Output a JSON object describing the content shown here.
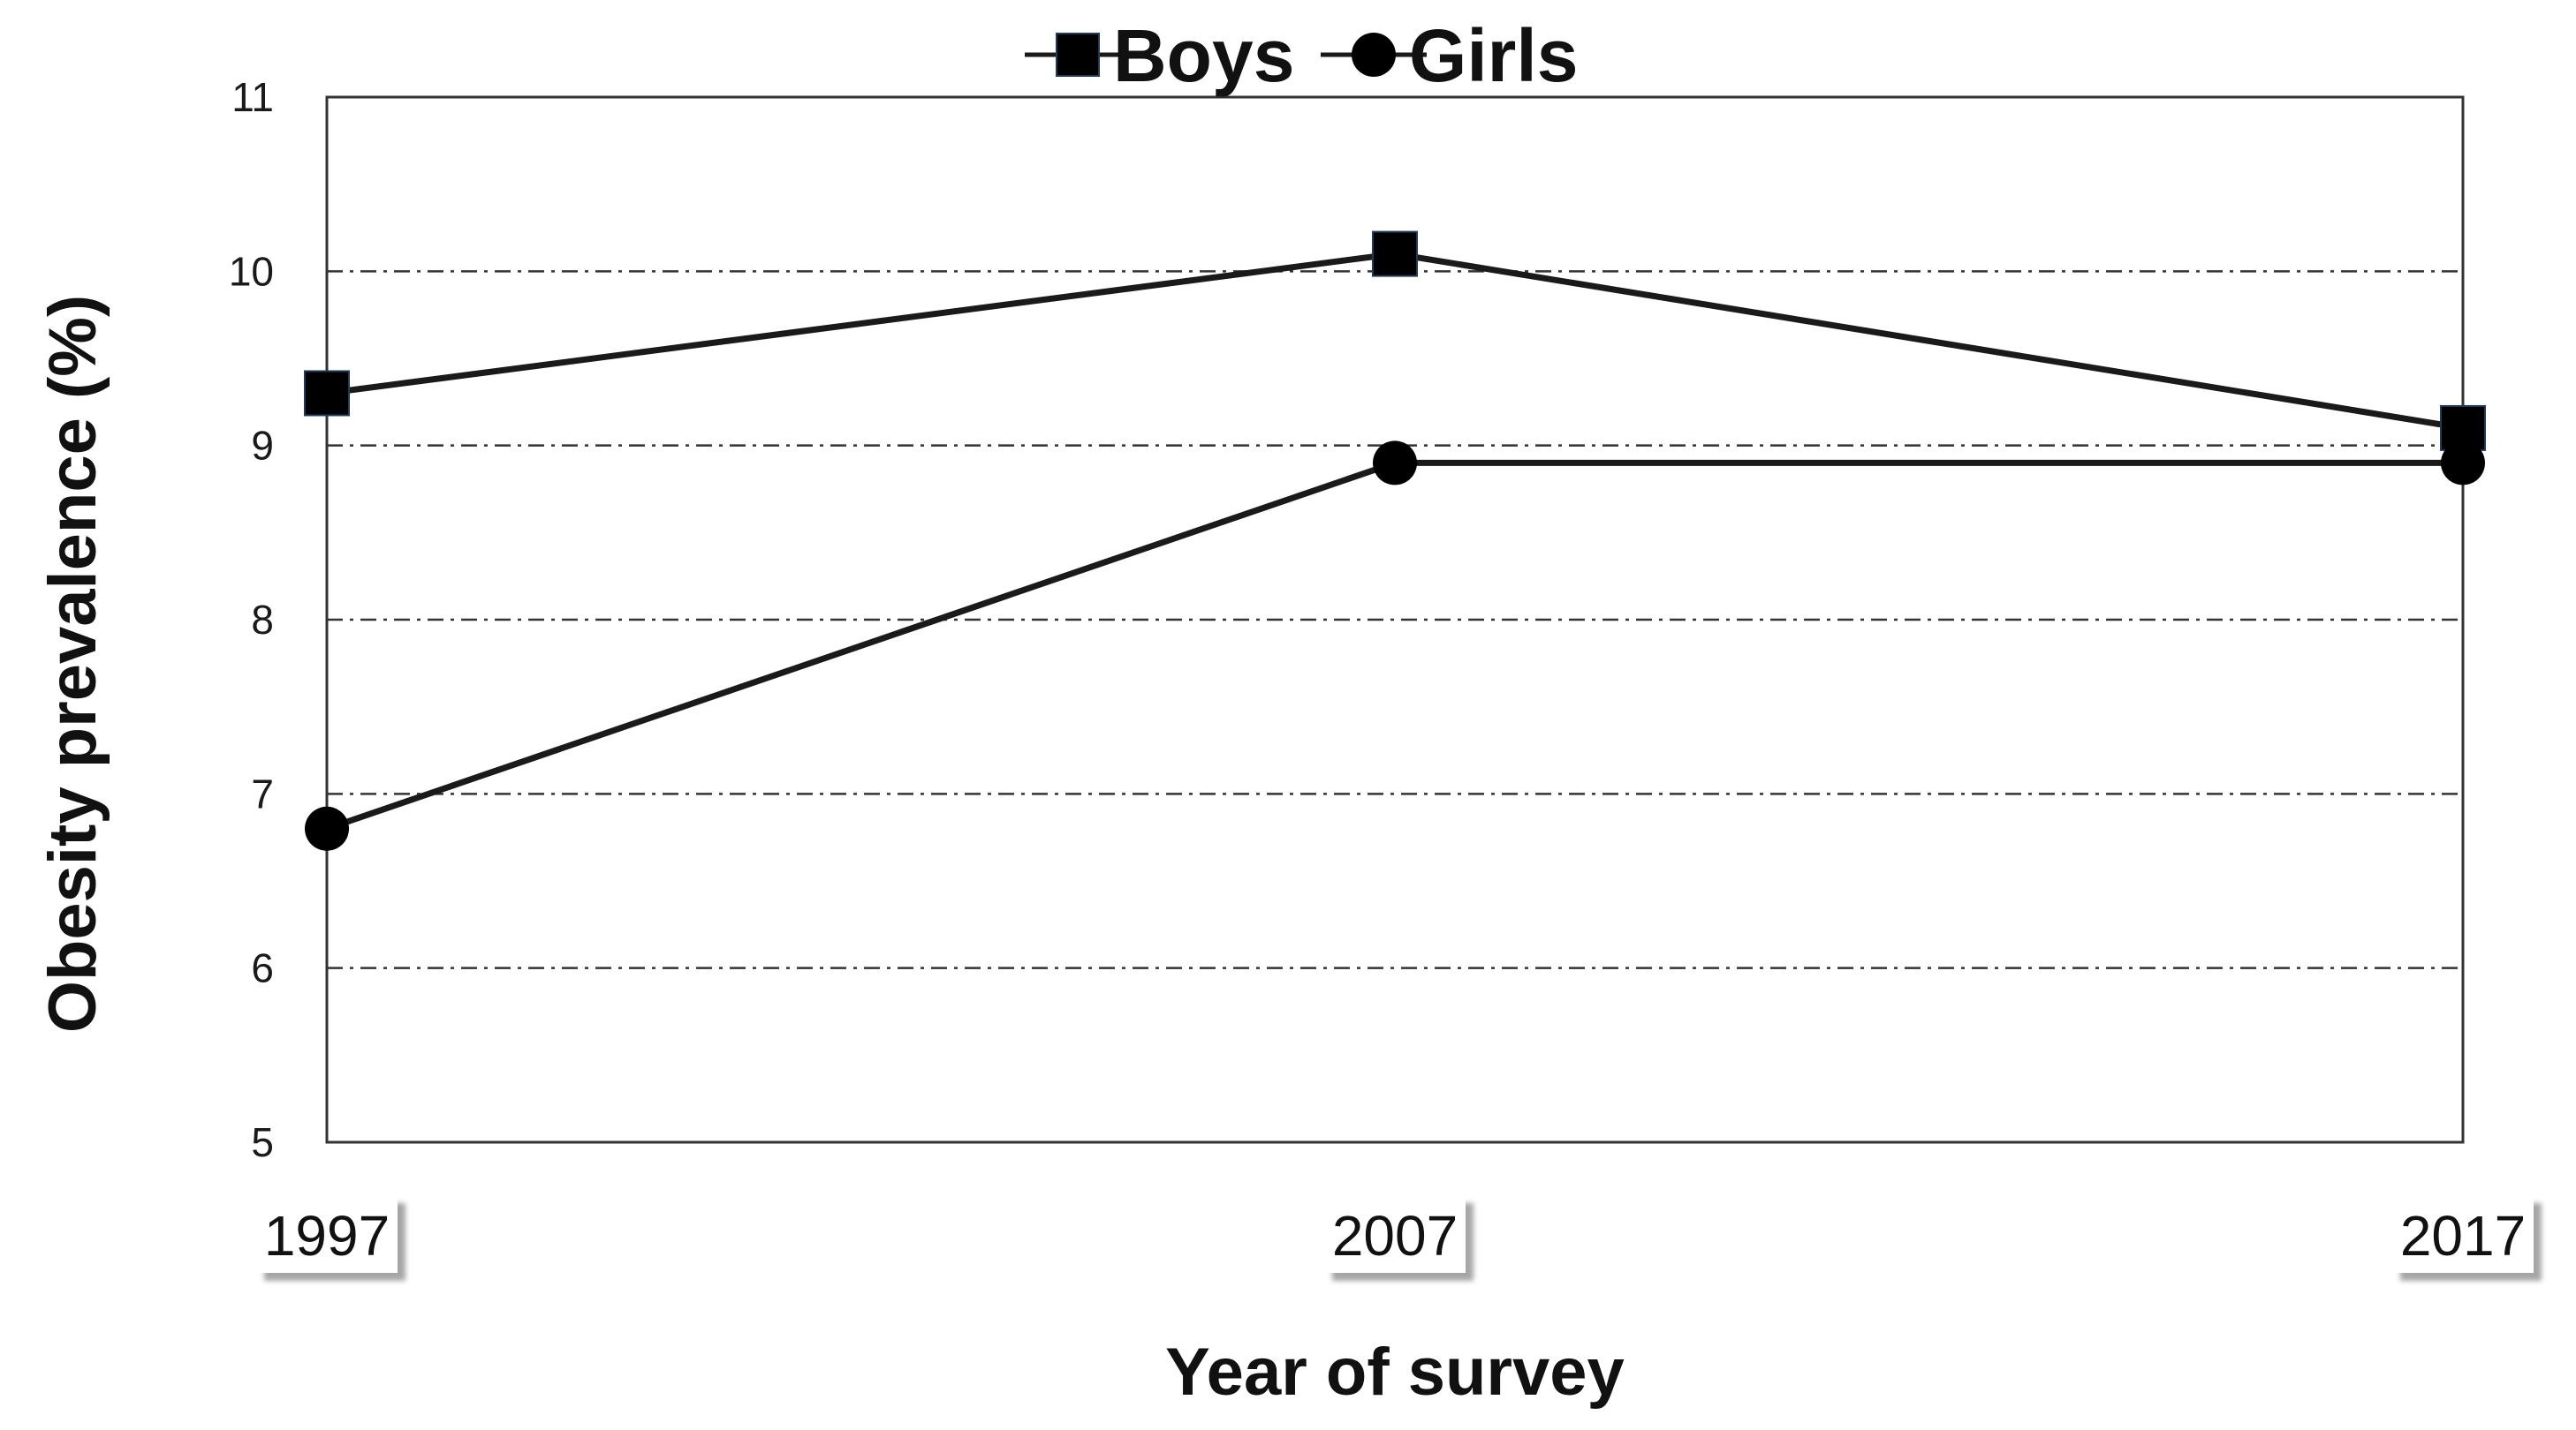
{
  "chart_data": {
    "type": "line",
    "title": "",
    "xlabel": "Year of survey",
    "ylabel": "Obesity prevalence (%)",
    "categories": [
      "1997",
      "2007",
      "2017"
    ],
    "ylim": [
      5,
      11
    ],
    "yticks": [
      "5",
      "6",
      "7",
      "8",
      "9",
      "10",
      "11"
    ],
    "grid": true,
    "legend_position": "top-center",
    "series": [
      {
        "name": "Boys",
        "marker": "square",
        "values": [
          9.3,
          10.1,
          9.1
        ]
      },
      {
        "name": "Girls",
        "marker": "circle",
        "values": [
          6.8,
          8.9,
          8.9
        ]
      }
    ],
    "colors": {
      "line": "#1a1a1a",
      "grid": "#333333",
      "frame": "#333333"
    }
  }
}
